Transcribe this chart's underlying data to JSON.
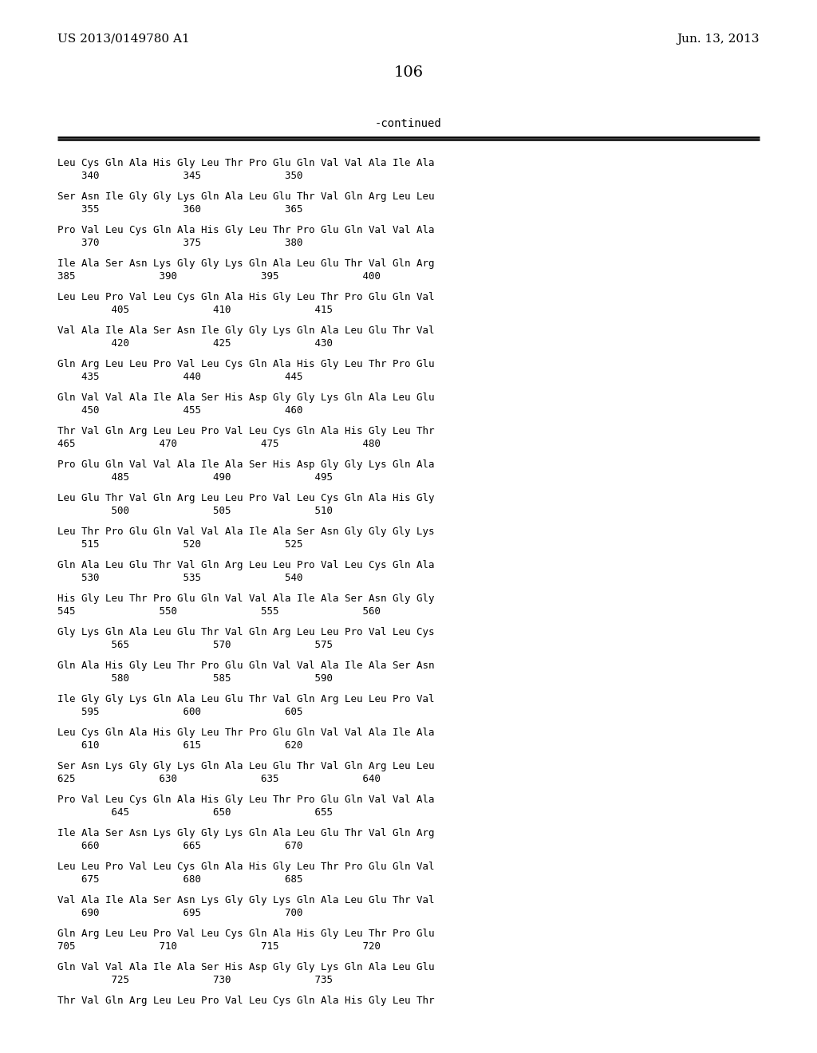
{
  "header_left": "US 2013/0149780 A1",
  "header_right": "Jun. 13, 2013",
  "page_number": "106",
  "continued_label": "-continued",
  "seq_lines": [
    [
      "Leu Cys Gln Ala His Gly Leu Thr Pro Glu Gln Val Val Ala Ile Ala",
      "    340              345              350"
    ],
    [
      "Ser Asn Ile Gly Gly Lys Gln Ala Leu Glu Thr Val Gln Arg Leu Leu",
      "    355              360              365"
    ],
    [
      "Pro Val Leu Cys Gln Ala His Gly Leu Thr Pro Glu Gln Val Val Ala",
      "    370              375              380"
    ],
    [
      "Ile Ala Ser Asn Lys Gly Gly Lys Gln Ala Leu Glu Thr Val Gln Arg",
      "385              390              395              400"
    ],
    [
      "Leu Leu Pro Val Leu Cys Gln Ala His Gly Leu Thr Pro Glu Gln Val",
      "         405              410              415"
    ],
    [
      "Val Ala Ile Ala Ser Asn Ile Gly Gly Lys Gln Ala Leu Glu Thr Val",
      "         420              425              430"
    ],
    [
      "Gln Arg Leu Leu Pro Val Leu Cys Gln Ala His Gly Leu Thr Pro Glu",
      "    435              440              445"
    ],
    [
      "Gln Val Val Ala Ile Ala Ser His Asp Gly Gly Lys Gln Ala Leu Glu",
      "    450              455              460"
    ],
    [
      "Thr Val Gln Arg Leu Leu Pro Val Leu Cys Gln Ala His Gly Leu Thr",
      "465              470              475              480"
    ],
    [
      "Pro Glu Gln Val Val Ala Ile Ala Ser His Asp Gly Gly Lys Gln Ala",
      "         485              490              495"
    ],
    [
      "Leu Glu Thr Val Gln Arg Leu Leu Pro Val Leu Cys Gln Ala His Gly",
      "         500              505              510"
    ],
    [
      "Leu Thr Pro Glu Gln Val Val Ala Ile Ala Ser Asn Gly Gly Gly Lys",
      "    515              520              525"
    ],
    [
      "Gln Ala Leu Glu Thr Val Gln Arg Leu Leu Pro Val Leu Cys Gln Ala",
      "    530              535              540"
    ],
    [
      "His Gly Leu Thr Pro Glu Gln Val Val Ala Ile Ala Ser Asn Gly Gly",
      "545              550              555              560"
    ],
    [
      "Gly Lys Gln Ala Leu Glu Thr Val Gln Arg Leu Leu Pro Val Leu Cys",
      "         565              570              575"
    ],
    [
      "Gln Ala His Gly Leu Thr Pro Glu Gln Val Val Ala Ile Ala Ser Asn",
      "         580              585              590"
    ],
    [
      "Ile Gly Gly Lys Gln Ala Leu Glu Thr Val Gln Arg Leu Leu Pro Val",
      "    595              600              605"
    ],
    [
      "Leu Cys Gln Ala His Gly Leu Thr Pro Glu Gln Val Val Ala Ile Ala",
      "    610              615              620"
    ],
    [
      "Ser Asn Lys Gly Gly Lys Gln Ala Leu Glu Thr Val Gln Arg Leu Leu",
      "625              630              635              640"
    ],
    [
      "Pro Val Leu Cys Gln Ala His Gly Leu Thr Pro Glu Gln Val Val Ala",
      "         645              650              655"
    ],
    [
      "Ile Ala Ser Asn Lys Gly Gly Lys Gln Ala Leu Glu Thr Val Gln Arg",
      "    660              665              670"
    ],
    [
      "Leu Leu Pro Val Leu Cys Gln Ala His Gly Leu Thr Pro Glu Gln Val",
      "    675              680              685"
    ],
    [
      "Val Ala Ile Ala Ser Asn Lys Gly Gly Lys Gln Ala Leu Glu Thr Val",
      "    690              695              700"
    ],
    [
      "Gln Arg Leu Leu Pro Val Leu Cys Gln Ala His Gly Leu Thr Pro Glu",
      "705              710              715              720"
    ],
    [
      "Gln Val Val Ala Ile Ala Ser His Asp Gly Gly Lys Gln Ala Leu Glu",
      "         725              730              735"
    ],
    [
      "Thr Val Gln Arg Leu Leu Pro Val Leu Cys Gln Ala His Gly Leu Thr",
      ""
    ]
  ],
  "bg_color": "#ffffff",
  "text_color": "#000000",
  "font_size_header": 11,
  "font_size_page": 14,
  "font_size_body": 9,
  "font_size_continued": 10
}
